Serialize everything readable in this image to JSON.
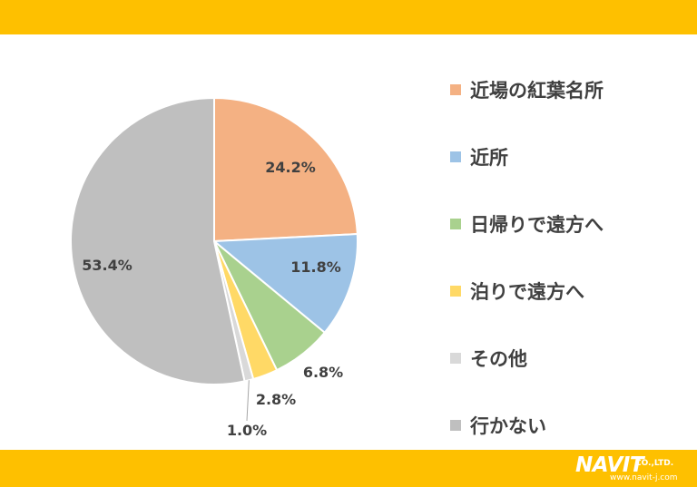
{
  "chart_data": {
    "type": "pie",
    "slices": [
      {
        "name": "近場の紅葉名所",
        "value": 24.2,
        "label": "24.2%",
        "color": "#f4b183"
      },
      {
        "name": "近所",
        "value": 11.8,
        "label": "11.8%",
        "color": "#9dc3e6"
      },
      {
        "name": "日帰りで遠方へ",
        "value": 6.8,
        "label": "6.8%",
        "color": "#a9d18e"
      },
      {
        "name": "泊りで遠方へ",
        "value": 2.8,
        "label": "2.8%",
        "color": "#ffd966"
      },
      {
        "name": "その他",
        "value": 1.0,
        "label": "1.0%",
        "color": "#d9d9d9"
      },
      {
        "name": "行かない",
        "value": 53.4,
        "label": "53.4%",
        "color": "#bfbfbf"
      }
    ],
    "legend_position": "right"
  },
  "brand": {
    "logo_text": "NAVIT",
    "company_suffix": "CO.,LTD.",
    "url": "www.navit-j.com",
    "band_color": "#fec000"
  }
}
